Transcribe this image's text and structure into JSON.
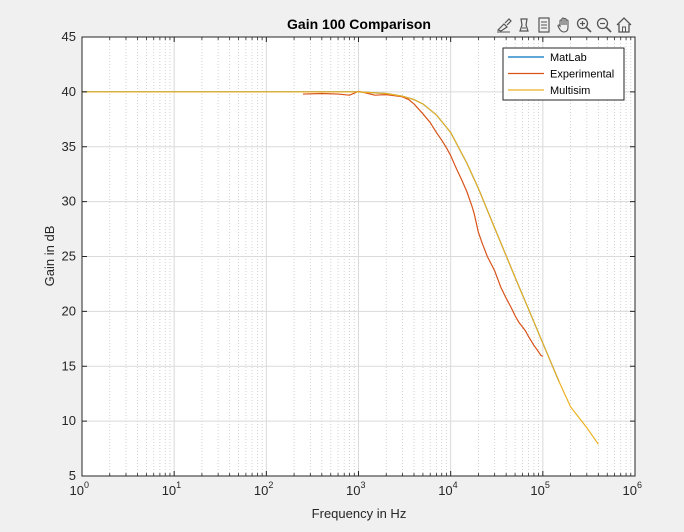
{
  "figure": {
    "toolbar": [
      {
        "icon": "brush-icon"
      },
      {
        "icon": "data-tips-icon"
      },
      {
        "icon": "legend-icon"
      },
      {
        "icon": "pan-hand-icon"
      },
      {
        "icon": "zoom-in-icon"
      },
      {
        "icon": "zoom-out-icon"
      },
      {
        "icon": "home-icon"
      }
    ]
  },
  "chart_data": {
    "type": "line",
    "title": "Gain 100 Comparison",
    "xlabel": "Frequency in Hz",
    "ylabel": "Gain in dB",
    "xscale": "log",
    "xlim": [
      1,
      1000000
    ],
    "ylim": [
      5,
      45
    ],
    "x_ticks": [
      {
        "value": 1,
        "base": "10",
        "exp": "0"
      },
      {
        "value": 10,
        "base": "10",
        "exp": "1"
      },
      {
        "value": 100,
        "base": "10",
        "exp": "2"
      },
      {
        "value": 1000,
        "base": "10",
        "exp": "3"
      },
      {
        "value": 10000,
        "base": "10",
        "exp": "4"
      },
      {
        "value": 100000,
        "base": "10",
        "exp": "5"
      },
      {
        "value": 1000000,
        "base": "10",
        "exp": "6"
      }
    ],
    "y_ticks": [
      5,
      10,
      15,
      20,
      25,
      30,
      35,
      40,
      45
    ],
    "grid": "on (major and minor)",
    "legend_position": "top-right",
    "series": [
      {
        "name": "MatLab",
        "color": "#0072bd",
        "x": [
          1,
          10,
          100,
          300,
          1000,
          2000,
          3000,
          4000,
          5000,
          7000,
          10000,
          15000,
          20000,
          30000,
          50000,
          70000,
          100000,
          150000
        ],
        "y": [
          40,
          40,
          40,
          40,
          40,
          39.85,
          39.6,
          39.3,
          38.9,
          37.9,
          36.3,
          33.5,
          31.2,
          27.6,
          23.1,
          20.2,
          17.1,
          13.6
        ]
      },
      {
        "name": "Experimental",
        "color": "#d95319",
        "x": [
          250,
          400,
          600,
          800,
          1000,
          1200,
          1500,
          2000,
          2500,
          3000,
          3500,
          4000,
          5000,
          6000,
          7000,
          8000,
          9000,
          10000,
          11000,
          12000,
          13000,
          15000,
          17000,
          18000,
          20000,
          22000,
          25000,
          30000,
          35000,
          40000,
          45000,
          50000,
          55000,
          60000,
          65000,
          70000,
          75000,
          80000,
          85000,
          90000,
          95000,
          100000
        ],
        "y": [
          39.8,
          39.85,
          39.8,
          39.7,
          40.05,
          39.9,
          39.7,
          39.75,
          39.65,
          39.55,
          39.3,
          38.9,
          38.0,
          37.2,
          36.3,
          35.6,
          34.9,
          34.2,
          33.4,
          32.7,
          32.1,
          30.9,
          29.6,
          28.9,
          27.2,
          26.2,
          25.0,
          23.7,
          22.2,
          21.2,
          20.4,
          19.6,
          19.0,
          18.6,
          18.2,
          17.7,
          17.3,
          16.9,
          16.6,
          16.3,
          16.0,
          15.9
        ]
      },
      {
        "name": "Multisim",
        "color": "#edb120",
        "x": [
          1,
          10,
          100,
          300,
          1000,
          2000,
          3000,
          4000,
          5000,
          7000,
          10000,
          15000,
          20000,
          30000,
          50000,
          70000,
          100000,
          150000,
          200000,
          300000,
          400000
        ],
        "y": [
          40,
          40,
          40,
          40,
          40,
          39.85,
          39.6,
          39.3,
          38.9,
          37.9,
          36.3,
          33.5,
          31.2,
          27.6,
          23.1,
          20.2,
          17.1,
          13.6,
          11.3,
          9.4,
          7.9
        ]
      }
    ]
  }
}
